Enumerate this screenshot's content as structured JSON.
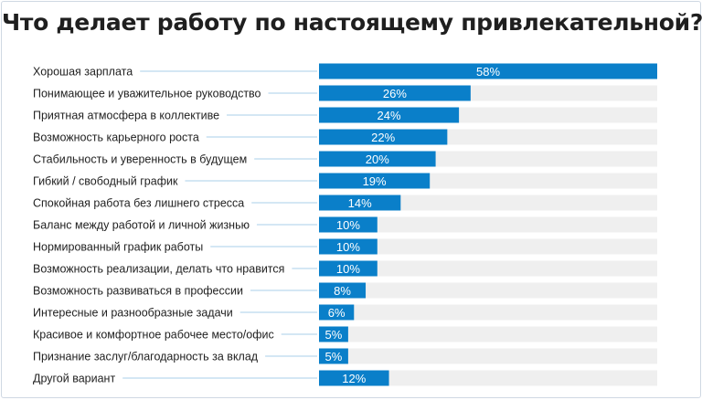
{
  "chart_data": {
    "type": "bar",
    "orientation": "horizontal",
    "title": "Что делает работу по настоящему привлекательной?",
    "xlabel": "",
    "ylabel": "",
    "xlim": [
      0,
      58
    ],
    "grid": false,
    "value_suffix": "%",
    "categories": [
      "Хорошая зарплата",
      "Понимающее и уважительное руководство",
      "Приятная атмосфера в коллективе",
      "Возможность карьерного роста",
      "Стабильность и уверенность в будущем",
      "Гибкий / свободный график",
      "Спокойная работа без лишнего стресса",
      "Баланс между работой и личной жизнью",
      "Нормированный график работы",
      "Возможность реализации, делать что нравится",
      "Возможность развиваться в профессии",
      "Интересные и разнообразные задачи",
      "Красивое и комфортное рабочее место/офис",
      "Признание заслуг/благодарность за вклад",
      "Другой вариант"
    ],
    "values": [
      58,
      26,
      24,
      22,
      20,
      19,
      14,
      10,
      10,
      10,
      8,
      6,
      5,
      5,
      12
    ],
    "data_labels": [
      "58%",
      "26%",
      "24%",
      "22%",
      "20%",
      "19%",
      "14%",
      "10%",
      "10%",
      "10%",
      "8%",
      "6%",
      "5%",
      "5%",
      "12%"
    ],
    "colors": {
      "bar": "#0a7fc9",
      "track": "#efefef",
      "leader_line": "#a9cfe9",
      "label_text": "#222222",
      "value_text": "#ffffff"
    }
  }
}
